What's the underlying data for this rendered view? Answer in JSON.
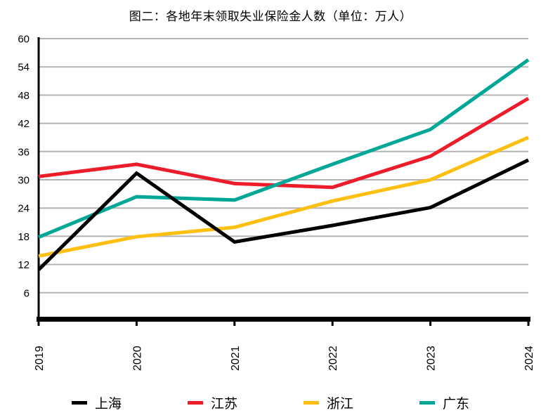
{
  "chart_data": {
    "type": "line",
    "title": "图二：各地年末领取失业保险金人数（单位：万人）",
    "unit": "万人",
    "x_labels": [
      "2019",
      "2020",
      "2021",
      "2022",
      "2023",
      "2024"
    ],
    "series": [
      {
        "name": "上海",
        "slug": "shanghai",
        "color": "#000000",
        "values": [
          10.9,
          31.4,
          16.8,
          20.3,
          24.1,
          34.2
        ]
      },
      {
        "name": "江苏",
        "slug": "jiangsu",
        "color": "#ec1c2a",
        "values": [
          30.7,
          33.3,
          29.2,
          28.4,
          35.0,
          47.3
        ]
      },
      {
        "name": "浙江",
        "slug": "zhejiang",
        "color": "#fcbf12",
        "values": [
          13.8,
          17.9,
          19.9,
          25.5,
          30.0,
          39.0
        ]
      },
      {
        "name": "广东",
        "slug": "guangdong",
        "color": "#00a796",
        "values": [
          17.8,
          26.4,
          25.7,
          33.3,
          40.7,
          55.5
        ]
      }
    ],
    "ylim": [
      0,
      60
    ],
    "yticks": [
      6,
      12,
      18,
      24,
      30,
      36,
      42,
      48,
      54,
      60
    ],
    "grid": true,
    "gridline_color": "#b3b3b3",
    "axis_color": "#000000",
    "legend_position": "bottom"
  }
}
